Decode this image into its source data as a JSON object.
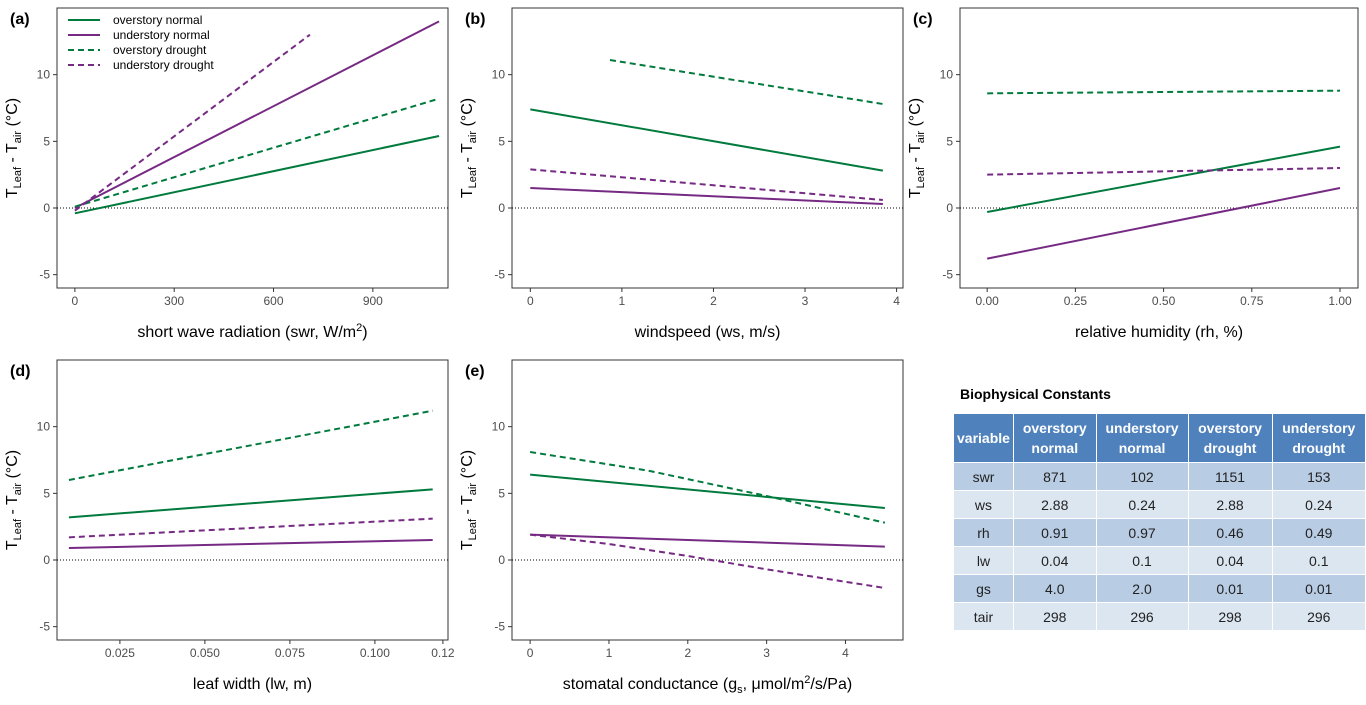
{
  "chart_data": [
    {
      "type": "line",
      "panel": "(a)",
      "legend": "top-left",
      "xlabel": [
        {
          "text": "short wave radiation (swr, W/m"
        },
        {
          "text": "2",
          "script": "super"
        },
        {
          "text": ")"
        }
      ],
      "ylabel": [
        {
          "text": "T"
        },
        {
          "text": "Leaf",
          "script": "sub"
        },
        {
          "text": " - T"
        },
        {
          "text": "air",
          "script": "sub"
        },
        {
          "text": " (°C)"
        }
      ],
      "xlim": [
        -54,
        1127
      ],
      "xticks": [
        0,
        300,
        600,
        900
      ],
      "ylim": [
        -6,
        15
      ],
      "yticks": [
        -5,
        0,
        5,
        10
      ],
      "hline": 0,
      "series": [
        {
          "name": "overstory normal",
          "color": "#007a3d",
          "dash": false,
          "x": [
            0,
            1100
          ],
          "values": [
            -0.4,
            5.4
          ]
        },
        {
          "name": "understory normal",
          "color": "#762a83",
          "dash": false,
          "x": [
            0,
            1100
          ],
          "values": [
            0.0,
            14.0
          ]
        },
        {
          "name": "overstory drought",
          "color": "#007a3d",
          "dash": true,
          "x": [
            0,
            1100
          ],
          "values": [
            0.1,
            8.2
          ]
        },
        {
          "name": "understory drought",
          "color": "#762a83",
          "dash": true,
          "x": [
            0,
            710
          ],
          "values": [
            -0.2,
            13.0
          ]
        }
      ]
    },
    {
      "type": "line",
      "panel": "(b)",
      "xlabel": [
        {
          "text": "windspeed (ws, m/s)"
        }
      ],
      "ylabel": [
        {
          "text": "T"
        },
        {
          "text": "Leaf",
          "script": "sub"
        },
        {
          "text": " - T"
        },
        {
          "text": "air",
          "script": "sub"
        },
        {
          "text": " (°C)"
        }
      ],
      "xlim": [
        -0.2,
        4.07
      ],
      "xticks": [
        0,
        1,
        2,
        3,
        4
      ],
      "ylim": [
        -6,
        15
      ],
      "yticks": [
        -5,
        0,
        5,
        10
      ],
      "hline": 0,
      "series": [
        {
          "name": "overstory normal",
          "color": "#007a3d",
          "dash": false,
          "x": [
            0,
            3.85
          ],
          "values": [
            7.4,
            2.8
          ]
        },
        {
          "name": "understory normal",
          "color": "#762a83",
          "dash": false,
          "x": [
            0,
            3.85
          ],
          "values": [
            1.5,
            0.3
          ]
        },
        {
          "name": "overstory drought",
          "color": "#007a3d",
          "dash": true,
          "x": [
            0.87,
            3.85
          ],
          "values": [
            11.1,
            7.8
          ]
        },
        {
          "name": "understory drought",
          "color": "#762a83",
          "dash": true,
          "x": [
            0,
            3.85
          ],
          "values": [
            2.9,
            0.6
          ]
        }
      ]
    },
    {
      "type": "line",
      "panel": "(c)",
      "xlabel": [
        {
          "text": "relative humidity (rh, %)"
        }
      ],
      "ylabel": [
        {
          "text": "T"
        },
        {
          "text": "Leaf",
          "script": "sub"
        },
        {
          "text": " - T"
        },
        {
          "text": "air",
          "script": "sub"
        },
        {
          "text": " (°C)"
        }
      ],
      "xlim": [
        -0.077,
        1.051
      ],
      "xticks": [
        {
          "value": 0,
          "label": "0.00"
        },
        0.25,
        {
          "value": 0.5,
          "label": "0.50"
        },
        0.75,
        {
          "value": 1,
          "label": "1.00"
        }
      ],
      "ylim": [
        -6,
        15
      ],
      "yticks": [
        -5,
        0,
        5,
        10
      ],
      "hline": 0,
      "series": [
        {
          "name": "overstory normal",
          "color": "#007a3d",
          "dash": false,
          "x": [
            0,
            1
          ],
          "values": [
            -0.3,
            4.6
          ]
        },
        {
          "name": "understory normal",
          "color": "#762a83",
          "dash": false,
          "x": [
            0,
            1
          ],
          "values": [
            -3.8,
            1.5
          ]
        },
        {
          "name": "overstory drought",
          "color": "#007a3d",
          "dash": true,
          "x": [
            0,
            1
          ],
          "values": [
            8.6,
            8.8
          ]
        },
        {
          "name": "understory drought",
          "color": "#762a83",
          "dash": true,
          "x": [
            0,
            1
          ],
          "values": [
            2.5,
            3.0
          ]
        }
      ]
    },
    {
      "type": "line",
      "panel": "(d)",
      "xlabel": [
        {
          "text": "leaf width (lw, m)"
        }
      ],
      "ylabel": [
        {
          "text": "T"
        },
        {
          "text": "Leaf",
          "script": "sub"
        },
        {
          "text": " - T"
        },
        {
          "text": "air",
          "script": "sub"
        },
        {
          "text": " (°C)"
        }
      ],
      "xlim": [
        0.0065,
        0.1215
      ],
      "xticks": [
        0.025,
        {
          "value": 0.05,
          "label": "0.050"
        },
        0.075,
        {
          "value": 0.1,
          "label": "0.100"
        },
        0.12
      ],
      "ylim": [
        -6,
        15
      ],
      "yticks": [
        -5,
        0,
        5,
        10
      ],
      "hline": 0,
      "series": [
        {
          "name": "overstory normal",
          "color": "#007a3d",
          "dash": false,
          "x": [
            0.01,
            0.117
          ],
          "values": [
            3.2,
            5.3
          ]
        },
        {
          "name": "understory normal",
          "color": "#762a83",
          "dash": false,
          "x": [
            0.01,
            0.117
          ],
          "values": [
            0.9,
            1.5
          ]
        },
        {
          "name": "overstory drought",
          "color": "#007a3d",
          "dash": true,
          "x": [
            0.01,
            0.117
          ],
          "values": [
            6.0,
            11.2
          ]
        },
        {
          "name": "understory drought",
          "color": "#762a83",
          "dash": true,
          "x": [
            0.01,
            0.117
          ],
          "values": [
            1.7,
            3.1
          ]
        }
      ]
    },
    {
      "type": "line",
      "panel": "(e)",
      "xlabel": [
        {
          "text": "stomatal conductance (g"
        },
        {
          "text": "s",
          "script": "sub"
        },
        {
          "text": ", μmol/m"
        },
        {
          "text": "2",
          "script": "super"
        },
        {
          "text": "/s/Pa)"
        }
      ],
      "ylabel": [
        {
          "text": "T"
        },
        {
          "text": "Leaf",
          "script": "sub"
        },
        {
          "text": " - T"
        },
        {
          "text": "air",
          "script": "sub"
        },
        {
          "text": " (°C)"
        }
      ],
      "xlim": [
        -0.23,
        4.73
      ],
      "xticks": [
        0,
        1,
        2,
        3,
        4
      ],
      "ylim": [
        -6,
        15
      ],
      "yticks": [
        -5,
        0,
        5,
        10
      ],
      "hline": 0,
      "series": [
        {
          "name": "overstory normal",
          "color": "#007a3d",
          "dash": false,
          "x": [
            0,
            4.5
          ],
          "values": [
            6.4,
            3.9
          ]
        },
        {
          "name": "understory normal",
          "color": "#762a83",
          "dash": false,
          "x": [
            0,
            4.5
          ],
          "values": [
            1.9,
            1.0
          ]
        },
        {
          "name": "overstory drought",
          "color": "#007a3d",
          "dash": true,
          "x": [
            0,
            1.5,
            3,
            4.5
          ],
          "values": [
            8.1,
            6.7,
            4.8,
            2.8
          ]
        },
        {
          "name": "understory drought",
          "color": "#762a83",
          "dash": true,
          "x": [
            0,
            1,
            2,
            3,
            4.5
          ],
          "values": [
            1.9,
            1.2,
            0.3,
            -0.7,
            -2.1
          ]
        }
      ]
    }
  ],
  "table": {
    "title": "Biophysical Constants",
    "header": [
      "variable",
      "overstory normal",
      "understory normal",
      "overstory drought",
      "understory drought"
    ],
    "rows": [
      [
        "swr",
        "871",
        "102",
        "1151",
        "153"
      ],
      [
        "ws",
        "2.88",
        "0.24",
        "2.88",
        "0.24"
      ],
      [
        "rh",
        "0.91",
        "0.97",
        "0.46",
        "0.49"
      ],
      [
        "lw",
        "0.04",
        "0.1",
        "0.04",
        "0.1"
      ],
      [
        "gs",
        "4.0",
        "2.0",
        "0.01",
        "0.01"
      ],
      [
        "tair",
        "298",
        "296",
        "298",
        "296"
      ]
    ]
  }
}
